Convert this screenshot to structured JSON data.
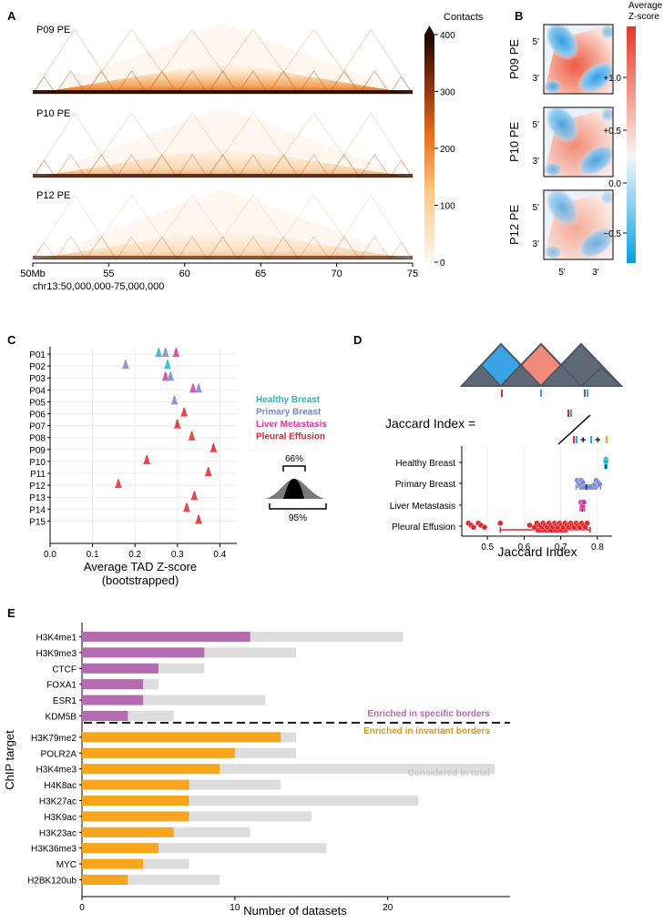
{
  "panel_labels": {
    "a": "A",
    "b": "B",
    "c": "C",
    "d": "D",
    "e": "E"
  },
  "colors": {
    "healthy": "#26b5c9",
    "primary": "#7788cc",
    "liver": "#d6399a",
    "pleural": "#e0262b",
    "specific": "#b46bb0",
    "invariant": "#f6a51c",
    "total": "#dddddd",
    "tad_blue": "#3aa3e6",
    "tad_red": "#f08a7a",
    "tad_gray": "#5e6877"
  },
  "panelA": {
    "tracks": [
      "P09 PE",
      "P10 PE",
      "P12 PE"
    ],
    "colorbar_title": "Contacts",
    "colorbar_ticks": [
      "400",
      "300",
      "200",
      "100",
      "0"
    ],
    "x_ticks": [
      "50Mb",
      "55",
      "60",
      "65",
      "70",
      "75"
    ],
    "region_label": "chr13:50,000,000-75,000,000"
  },
  "panelB": {
    "rows": [
      "P09 PE",
      "P10 PE",
      "P12 PE"
    ],
    "edge_top": "5'",
    "edge_bottom": "3'",
    "x_left": "5'",
    "x_right": "3'",
    "legend_title_line1": "Average",
    "legend_title_line2": "Z-score",
    "legend_ticks": [
      "+1.0",
      "+0.5",
      "0.0",
      "−0.5"
    ]
  },
  "chart_data": [
    {
      "id": "C",
      "type": "scatter",
      "title": "",
      "xlabel": "Average TAD Z-score",
      "xlabel2": "(bootstrapped)",
      "ylabel": "",
      "xlim": [
        0.0,
        0.44
      ],
      "x_ticks": [
        "0.0",
        "0.1",
        "0.2",
        "0.3",
        "0.4"
      ],
      "x_tick_values": [
        0.0,
        0.1,
        0.2,
        0.3,
        0.4
      ],
      "samples": [
        "P01",
        "P02",
        "P03",
        "P04",
        "P05",
        "P06",
        "P07",
        "P08",
        "P09",
        "P10",
        "P11",
        "P12",
        "P13",
        "P14",
        "P15"
      ],
      "distributions": [
        {
          "sample": "P01",
          "group": "healthy",
          "mean": 0.256
        },
        {
          "sample": "P01",
          "group": "primary",
          "mean": 0.272
        },
        {
          "sample": "P01",
          "group": "liver",
          "mean": 0.297
        },
        {
          "sample": "P02",
          "group": "primary",
          "mean": 0.178
        },
        {
          "sample": "P02",
          "group": "healthy",
          "mean": 0.277
        },
        {
          "sample": "P03",
          "group": "liver",
          "mean": 0.272
        },
        {
          "sample": "P03",
          "group": "primary",
          "mean": 0.284
        },
        {
          "sample": "P04",
          "group": "liver",
          "mean": 0.337
        },
        {
          "sample": "P04",
          "group": "primary",
          "mean": 0.35
        },
        {
          "sample": "P05",
          "group": "primary",
          "mean": 0.293
        },
        {
          "sample": "P06",
          "group": "pleural",
          "mean": 0.316
        },
        {
          "sample": "P07",
          "group": "pleural",
          "mean": 0.3
        },
        {
          "sample": "P08",
          "group": "pleural",
          "mean": 0.334
        },
        {
          "sample": "P09",
          "group": "pleural",
          "mean": 0.385
        },
        {
          "sample": "P10",
          "group": "pleural",
          "mean": 0.228
        },
        {
          "sample": "P11",
          "group": "pleural",
          "mean": 0.373
        },
        {
          "sample": "P12",
          "group": "pleural",
          "mean": 0.161
        },
        {
          "sample": "P13",
          "group": "pleural",
          "mean": 0.34
        },
        {
          "sample": "P14",
          "group": "pleural",
          "mean": 0.322
        },
        {
          "sample": "P15",
          "group": "pleural",
          "mean": 0.35
        }
      ],
      "legend": [
        {
          "label": "Healthy Breast",
          "group": "healthy"
        },
        {
          "label": "Primary Breast",
          "group": "primary"
        },
        {
          "label": "Liver Metastasis",
          "group": "liver"
        },
        {
          "label": "Pleural Effusion",
          "group": "pleural"
        }
      ],
      "interval_key": {
        "inner": "66%",
        "outer": "95%"
      }
    },
    {
      "id": "D",
      "type": "scatter",
      "xlabel": "Jaccard Index",
      "xlim": [
        0.43,
        0.84
      ],
      "x_ticks": [
        "0.5",
        "0.6",
        "0.7",
        "0.8"
      ],
      "x_tick_values": [
        0.5,
        0.6,
        0.7,
        0.8
      ],
      "formula_label": "Jaccard Index =",
      "categories": [
        "Healthy Breast",
        "Primary Breast",
        "Liver Metastasis",
        "Pleural Effusion"
      ],
      "groups": [
        "healthy",
        "primary",
        "liver",
        "pleural"
      ],
      "points": [
        [
          0.823,
          0.823
        ],
        [
          0.745,
          0.748,
          0.752,
          0.756,
          0.76,
          0.793,
          0.797,
          0.802,
          0.806
        ],
        [
          0.755,
          0.758,
          0.76,
          0.763
        ],
        [
          0.448,
          0.455,
          0.462,
          0.475,
          0.482,
          0.492,
          0.535,
          0.615,
          0.628,
          0.635,
          0.642,
          0.648,
          0.652,
          0.658,
          0.663,
          0.668,
          0.673,
          0.678,
          0.683,
          0.688,
          0.692,
          0.697,
          0.702,
          0.707,
          0.712,
          0.717,
          0.722,
          0.727,
          0.732,
          0.737,
          0.742,
          0.747,
          0.752,
          0.757,
          0.762,
          0.767,
          0.772
        ]
      ],
      "boxes": [
        {
          "min": 0.82,
          "q1": 0.821,
          "median": 0.823,
          "q3": 0.824,
          "max": 0.826
        },
        {
          "min": 0.742,
          "q1": 0.75,
          "median": 0.77,
          "q3": 0.8,
          "max": 0.808
        },
        {
          "min": 0.753,
          "q1": 0.756,
          "median": 0.759,
          "q3": 0.762,
          "max": 0.765
        },
        {
          "min": 0.535,
          "q1": 0.632,
          "median": 0.675,
          "q3": 0.718,
          "max": 0.78
        }
      ]
    },
    {
      "id": "E",
      "type": "bar",
      "orientation": "horizontal",
      "xlabel": "Number of datasets",
      "ylabel": "ChIP target",
      "xlim": [
        0,
        28
      ],
      "x_ticks": [
        "0",
        "10",
        "20"
      ],
      "x_tick_values": [
        0,
        10,
        20
      ],
      "categories": [
        "H3K4me1",
        "H3K9me3",
        "CTCF",
        "FOXA1",
        "ESR1",
        "KDM5B",
        "H3K79me2",
        "POLR2A",
        "H3K4me3",
        "H4K8ac",
        "H3K27ac",
        "H3K9ac",
        "H3K23ac",
        "H3K36me3",
        "MYC",
        "H2BK120ub"
      ],
      "series": [
        {
          "name": "Considered in total",
          "values": [
            21,
            14,
            8,
            5,
            12,
            6,
            14,
            14,
            27,
            13,
            22,
            15,
            11,
            16,
            7,
            9
          ]
        },
        {
          "name": "Enriched",
          "values": [
            11,
            8,
            5,
            4,
            4,
            3,
            13,
            10,
            9,
            7,
            7,
            7,
            6,
            5,
            4,
            3
          ]
        }
      ],
      "bar_group": [
        "specific",
        "specific",
        "specific",
        "specific",
        "specific",
        "specific",
        "invariant",
        "invariant",
        "invariant",
        "invariant",
        "invariant",
        "invariant",
        "invariant",
        "invariant",
        "invariant",
        "invariant"
      ],
      "annotations": {
        "specific": "Enriched in specific borders",
        "invariant": "Enriched in invariant borders",
        "total": "Considered in total"
      }
    }
  ]
}
